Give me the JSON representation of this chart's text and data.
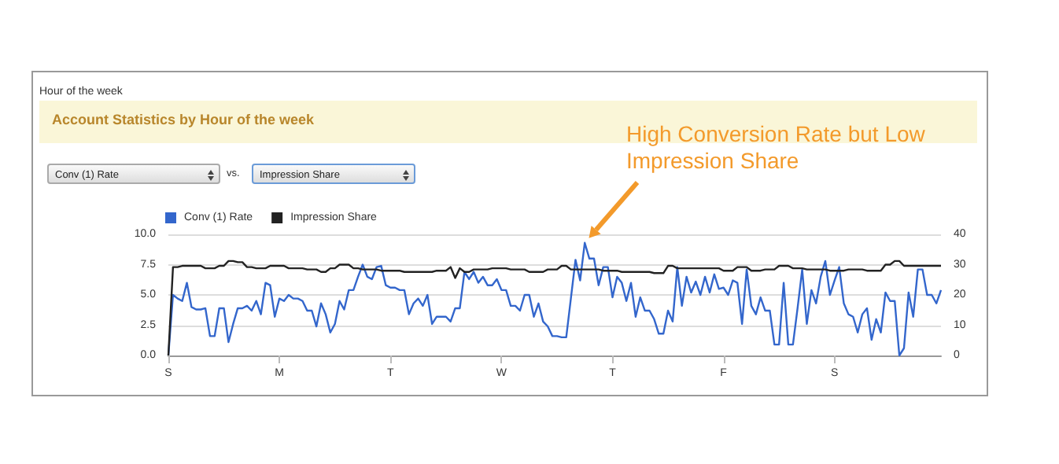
{
  "chart_data": {
    "type": "line",
    "title": "Account Statistics by Hour of the week",
    "annotations": [
      "Hour of the week",
      "Conv (1) Rate",
      "vs.",
      "Impression Share",
      "High Conversion Rate but Low Impression Share"
    ],
    "categories": [
      "S",
      null,
      null,
      null,
      null,
      null,
      null,
      null,
      null,
      null,
      null,
      null,
      null,
      null,
      null,
      null,
      null,
      null,
      null,
      null,
      null,
      null,
      null,
      null,
      "M",
      null,
      null,
      null,
      null,
      null,
      null,
      null,
      null,
      null,
      null,
      null,
      null,
      null,
      null,
      null,
      null,
      null,
      null,
      null,
      null,
      null,
      null,
      null,
      "T",
      null,
      null,
      null,
      null,
      null,
      null,
      null,
      null,
      null,
      null,
      null,
      null,
      null,
      null,
      null,
      null,
      null,
      null,
      null,
      null,
      null,
      null,
      null,
      "W",
      null,
      null,
      null,
      null,
      null,
      null,
      null,
      null,
      null,
      null,
      null,
      null,
      null,
      null,
      null,
      null,
      null,
      null,
      null,
      null,
      null,
      null,
      null,
      "T",
      null,
      null,
      null,
      null,
      null,
      null,
      null,
      null,
      null,
      null,
      null,
      null,
      null,
      null,
      null,
      null,
      null,
      null,
      null,
      null,
      null,
      null,
      null,
      "F",
      null,
      null,
      null,
      null,
      null,
      null,
      null,
      null,
      null,
      null,
      null,
      null,
      null,
      null,
      null,
      null,
      null,
      null,
      null,
      null,
      null,
      null,
      null,
      "S",
      null,
      null,
      null,
      null,
      null,
      null,
      null,
      null,
      null,
      null,
      null,
      null,
      null,
      null,
      null,
      null,
      null,
      null,
      null,
      null,
      null,
      null,
      null
    ],
    "ylim": [
      0,
      10
    ],
    "yticks": [
      {
        "value": 0,
        "label": "0.0"
      },
      2.5,
      {
        "value": 5,
        "label": "5.0"
      },
      7.5,
      {
        "value": 10,
        "label": "10.0"
      }
    ],
    "y2lim": [
      0,
      40
    ],
    "y2ticks": [
      0,
      10,
      20,
      30,
      40
    ],
    "grid": "y",
    "legend": "top left",
    "marker": "none",
    "series": [
      {
        "name": "Conv (1) Rate",
        "color": "#3366cc",
        "values": [
          0,
          5.0,
          4.7,
          4.5,
          6.0,
          4.0,
          3.8,
          3.8,
          3.9,
          1.6,
          1.6,
          3.9,
          3.9,
          1.1,
          2.6,
          3.9,
          3.9,
          4.1,
          3.7,
          4.5,
          3.4,
          6.0,
          5.8,
          3.2,
          4.7,
          4.5,
          5.0,
          4.7,
          4.7,
          4.5,
          3.7,
          3.7,
          2.4,
          4.3,
          3.4,
          1.9,
          2.6,
          4.5,
          3.8,
          5.4,
          5.4,
          6.5,
          7.5,
          6.5,
          6.3,
          7.3,
          7.4,
          5.8,
          5.6,
          5.6,
          5.4,
          5.4,
          3.4,
          4.3,
          4.7,
          4.1,
          5.0,
          2.6,
          3.2,
          3.2,
          3.2,
          2.8,
          3.9,
          3.9,
          6.9,
          6.3,
          6.9,
          6.0,
          6.5,
          5.8,
          5.8,
          6.3,
          5.4,
          5.4,
          4.1,
          4.1,
          3.7,
          5.0,
          5.0,
          3.2,
          4.3,
          2.8,
          2.4,
          1.6,
          1.6,
          1.5,
          1.5,
          4.7,
          7.9,
          6.2,
          9.3,
          8.0,
          8.0,
          5.8,
          7.3,
          7.3,
          4.8,
          6.5,
          6.0,
          4.5,
          6.0,
          3.2,
          4.8,
          3.7,
          3.7,
          3.0,
          1.8,
          1.8,
          3.7,
          2.8,
          7.3,
          4.1,
          6.5,
          5.2,
          6.1,
          5.0,
          6.5,
          5.2,
          6.7,
          5.5,
          5.6,
          5.0,
          6.2,
          6.0,
          2.6,
          7.1,
          4.1,
          3.4,
          4.8,
          3.7,
          3.7,
          0.9,
          0.9,
          6.0,
          0.9,
          0.9,
          3.9,
          7.1,
          2.6,
          5.4,
          4.3,
          6.5,
          7.8,
          5.0,
          6.2,
          7.3,
          4.3,
          3.4,
          3.2,
          1.9,
          3.4,
          3.9,
          1.3,
          3.0,
          1.9,
          5.2,
          4.5,
          4.5,
          0,
          0.6,
          5.2,
          3.2,
          7.1,
          7.1,
          5.0,
          5.0,
          4.3,
          5.4
        ]
      },
      {
        "name": "Impression Share",
        "color": "#222222",
        "axis": "y2",
        "values": [
          0,
          29.2,
          29.2,
          29.6,
          29.6,
          29.6,
          29.6,
          29.6,
          28.8,
          28.8,
          28.8,
          29.6,
          29.6,
          31.2,
          31.2,
          30.8,
          30.8,
          29.2,
          29.2,
          28.8,
          28.8,
          28.8,
          29.6,
          29.6,
          29.6,
          29.6,
          28.8,
          28.8,
          28.8,
          28.8,
          28.4,
          28.4,
          28.4,
          27.6,
          27.6,
          28.8,
          28.8,
          30,
          30,
          30,
          28.8,
          28.8,
          28.4,
          28.4,
          28.4,
          28.4,
          28,
          28,
          28,
          28,
          28,
          27.6,
          27.6,
          27.6,
          27.6,
          27.6,
          27.6,
          27.6,
          28,
          28,
          28,
          29.2,
          25.6,
          28.8,
          27.6,
          27.6,
          28.4,
          28.4,
          28.4,
          28.4,
          28.8,
          28.8,
          28.8,
          28.8,
          28.4,
          28.4,
          28.4,
          28.4,
          27.6,
          27.6,
          27.6,
          27.6,
          28.4,
          28.4,
          28.4,
          29.6,
          29.6,
          28.4,
          28.4,
          28.4,
          28.4,
          28.4,
          28.4,
          28.4,
          28,
          28,
          28,
          28,
          27.6,
          27.6,
          27.6,
          27.6,
          27.6,
          27.6,
          27.6,
          27.2,
          27.2,
          27.2,
          29.6,
          29.6,
          28.8,
          28.8,
          28.8,
          28.8,
          28.8,
          28.8,
          28.8,
          28.8,
          28.8,
          28.8,
          28,
          28,
          28,
          29.2,
          29.2,
          29.2,
          28,
          28,
          28,
          28.4,
          28.4,
          28.4,
          29.6,
          29.6,
          29.6,
          28.8,
          28.8,
          28.8,
          28.4,
          28.4,
          28.4,
          28.4,
          28.4,
          28,
          28,
          28,
          28,
          28.4,
          28.4,
          28.4,
          28.4,
          28,
          28,
          28,
          28,
          30,
          30,
          31.2,
          31.2,
          29.6,
          29.6,
          29.6,
          29.6,
          29.6,
          29.6,
          29.6,
          29.6,
          29.6
        ]
      }
    ]
  }
}
